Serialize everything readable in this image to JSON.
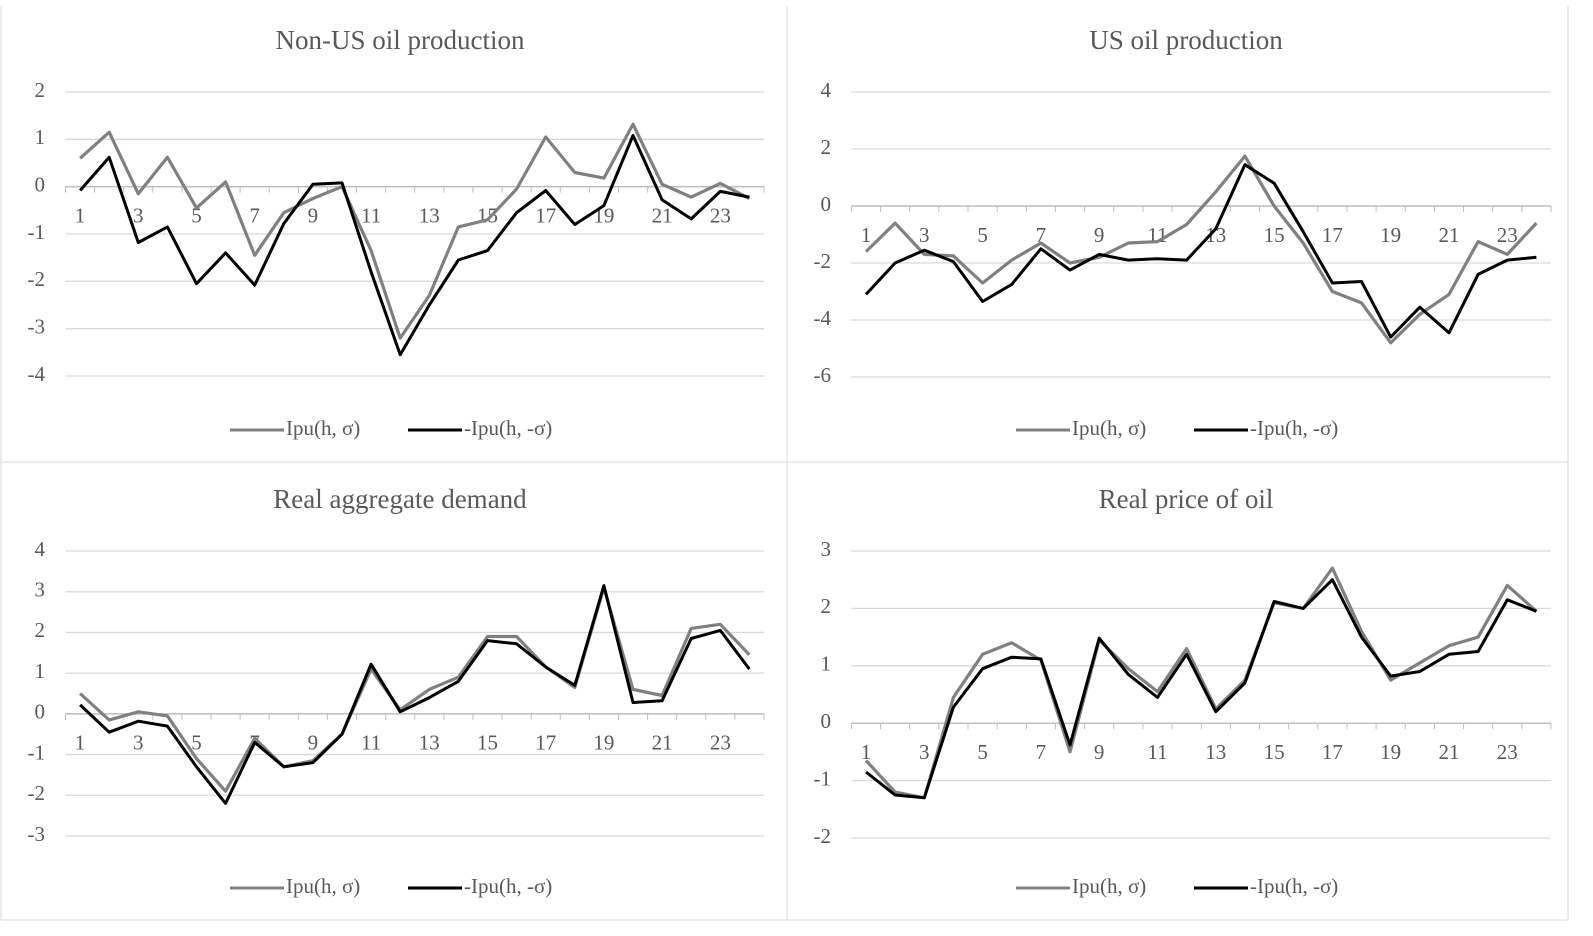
{
  "chart_data": [
    {
      "type": "line",
      "title": "Non-US oil production",
      "categories": [
        1,
        null,
        3,
        null,
        5,
        null,
        7,
        null,
        9,
        null,
        11,
        null,
        13,
        null,
        15,
        null,
        17,
        null,
        19,
        null,
        21,
        null,
        23,
        null
      ],
      "series": [
        {
          "name": "Ipu(h, σ)",
          "color": "#808080",
          "values": [
            0.6,
            1.15,
            -0.15,
            0.62,
            -0.45,
            0.1,
            -1.45,
            -0.55,
            -0.25,
            0.0,
            -1.35,
            -3.2,
            -2.3,
            -0.85,
            -0.7,
            -0.05,
            1.05,
            0.3,
            0.18,
            1.32,
            0.05,
            -0.22,
            0.07,
            -0.25
          ]
        },
        {
          "name": "-Ipu(h, -σ)",
          "color": "#000000",
          "values": [
            -0.08,
            0.62,
            -1.18,
            -0.85,
            -2.05,
            -1.4,
            -2.08,
            -0.78,
            0.05,
            0.08,
            -1.8,
            -3.55,
            -2.5,
            -1.55,
            -1.35,
            -0.55,
            -0.08,
            -0.8,
            -0.4,
            1.08,
            -0.28,
            -0.68,
            -0.1,
            -0.22
          ]
        }
      ],
      "ylim": [
        -4,
        2
      ],
      "yticks": [
        2,
        1,
        0,
        -1,
        -2,
        -3,
        -4
      ],
      "grid": true,
      "legend": "bottom"
    },
    {
      "type": "line",
      "title": "US oil production",
      "categories": [
        1,
        null,
        3,
        null,
        5,
        null,
        7,
        null,
        9,
        null,
        11,
        null,
        13,
        null,
        15,
        null,
        17,
        null,
        19,
        null,
        21,
        null,
        23,
        null
      ],
      "series": [
        {
          "name": "Ipu(h, σ)",
          "color": "#808080",
          "values": [
            -1.6,
            -0.6,
            -1.7,
            -1.75,
            -2.7,
            -1.9,
            -1.3,
            -2.0,
            -1.8,
            -1.3,
            -1.25,
            -0.65,
            0.5,
            1.75,
            0.0,
            -1.3,
            -3.0,
            -3.4,
            -4.8,
            -3.8,
            -3.1,
            -1.25,
            -1.7,
            -0.6
          ]
        },
        {
          "name": "-Ipu(h, -σ)",
          "color": "#000000",
          "values": [
            -3.1,
            -2.0,
            -1.55,
            -1.95,
            -3.35,
            -2.75,
            -1.5,
            -2.25,
            -1.7,
            -1.9,
            -1.85,
            -1.9,
            -0.8,
            1.45,
            0.8,
            -0.9,
            -2.7,
            -2.65,
            -4.6,
            -3.55,
            -4.45,
            -2.4,
            -1.9,
            -1.8
          ]
        }
      ],
      "ylim": [
        -6,
        4
      ],
      "yticks": [
        4,
        2,
        0,
        -2,
        -4,
        -6
      ],
      "grid": true,
      "legend": "bottom"
    },
    {
      "type": "line",
      "title": "Real aggregate demand",
      "categories": [
        1,
        null,
        3,
        null,
        5,
        null,
        7,
        null,
        9,
        null,
        11,
        null,
        13,
        null,
        15,
        null,
        17,
        null,
        19,
        null,
        21,
        null,
        23,
        null
      ],
      "series": [
        {
          "name": "Ipu(h, σ)",
          "color": "#808080",
          "values": [
            0.5,
            -0.15,
            0.05,
            -0.05,
            -1.1,
            -1.9,
            -0.6,
            -1.3,
            -1.15,
            -0.5,
            1.1,
            0.1,
            0.6,
            0.9,
            1.9,
            1.9,
            1.15,
            0.65,
            3.1,
            0.6,
            0.45,
            2.1,
            2.2,
            1.45
          ]
        },
        {
          "name": "-Ipu(h, -σ)",
          "color": "#000000",
          "values": [
            0.22,
            -0.45,
            -0.18,
            -0.3,
            -1.3,
            -2.2,
            -0.7,
            -1.3,
            -1.2,
            -0.5,
            1.22,
            0.05,
            0.4,
            0.8,
            1.8,
            1.72,
            1.15,
            0.7,
            3.15,
            0.28,
            0.32,
            1.85,
            2.05,
            1.1
          ]
        }
      ],
      "ylim": [
        -3,
        4
      ],
      "yticks": [
        4,
        3,
        2,
        1,
        0,
        -1,
        -2,
        -3
      ],
      "grid": true,
      "legend": "bottom"
    },
    {
      "type": "line",
      "title": "Real price of oil",
      "categories": [
        1,
        null,
        3,
        null,
        5,
        null,
        7,
        null,
        9,
        null,
        11,
        null,
        13,
        null,
        15,
        null,
        17,
        null,
        19,
        null,
        21,
        null,
        23,
        null
      ],
      "series": [
        {
          "name": "Ipu(h, σ)",
          "color": "#808080",
          "values": [
            -0.65,
            -1.2,
            -1.3,
            0.45,
            1.2,
            1.4,
            1.1,
            -0.5,
            1.45,
            0.95,
            0.55,
            1.3,
            0.25,
            0.75,
            2.1,
            2.0,
            2.7,
            1.6,
            0.75,
            1.05,
            1.35,
            1.5,
            2.4,
            1.95
          ]
        },
        {
          "name": "-Ipu(h, -σ)",
          "color": "#000000",
          "values": [
            -0.85,
            -1.25,
            -1.3,
            0.28,
            0.95,
            1.15,
            1.12,
            -0.38,
            1.48,
            0.85,
            0.45,
            1.2,
            0.2,
            0.7,
            2.12,
            2.0,
            2.5,
            1.5,
            0.82,
            0.9,
            1.2,
            1.25,
            2.15,
            1.95
          ]
        }
      ],
      "ylim": [
        -2,
        3
      ],
      "yticks": [
        3,
        2,
        1,
        0,
        -1,
        -2
      ],
      "grid": true,
      "legend": "bottom"
    }
  ]
}
